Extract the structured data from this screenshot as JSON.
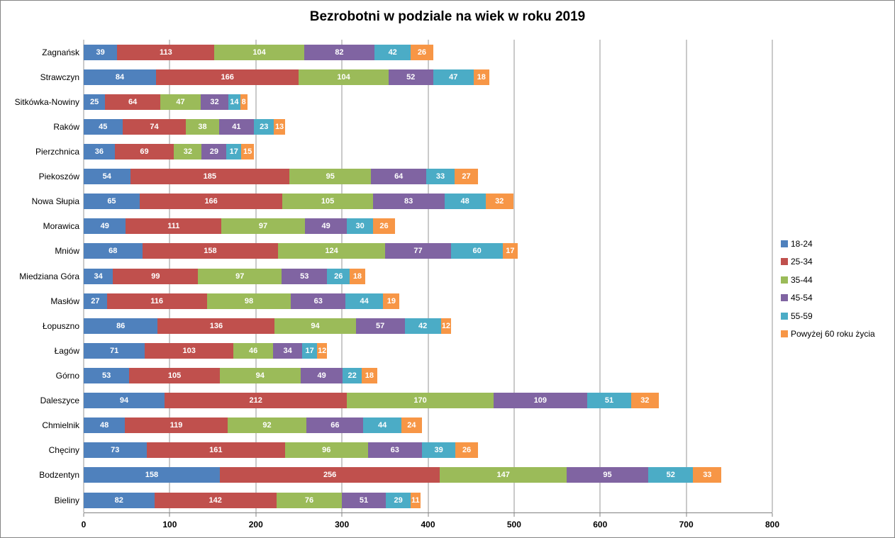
{
  "chart_data": {
    "type": "bar",
    "orientation": "horizontal",
    "stacked": true,
    "title": "Bezrobotni w podziale na wiek w roku 2019",
    "categories": [
      "Zagnańsk",
      "Strawczyn",
      "Sitkówka-Nowiny",
      "Raków",
      "Pierzchnica",
      "Piekoszów",
      "Nowa Słupia",
      "Morawica",
      "Mniów",
      "Miedziana Góra",
      "Masłów",
      "Łopuszno",
      "Łagów",
      "Górno",
      "Daleszyce",
      "Chmielnik",
      "Chęciny",
      "Bodzentyn",
      "Bieliny"
    ],
    "series": [
      {
        "name": "18-24",
        "color": "#4F81BD",
        "values": [
          39,
          84,
          25,
          45,
          36,
          54,
          65,
          49,
          68,
          34,
          27,
          86,
          71,
          53,
          94,
          48,
          73,
          158,
          82
        ]
      },
      {
        "name": "25-34",
        "color": "#C0504D",
        "values": [
          113,
          166,
          64,
          74,
          69,
          185,
          166,
          111,
          158,
          99,
          116,
          136,
          103,
          105,
          212,
          119,
          161,
          256,
          142
        ]
      },
      {
        "name": "35-44",
        "color": "#9BBB59",
        "values": [
          104,
          104,
          47,
          38,
          32,
          95,
          105,
          97,
          124,
          97,
          98,
          94,
          46,
          94,
          170,
          92,
          96,
          147,
          76
        ]
      },
      {
        "name": "45-54",
        "color": "#8064A2",
        "values": [
          82,
          52,
          32,
          41,
          29,
          64,
          83,
          49,
          77,
          53,
          63,
          57,
          34,
          49,
          109,
          66,
          63,
          95,
          51
        ]
      },
      {
        "name": "55-59",
        "color": "#4BACC6",
        "values": [
          42,
          47,
          14,
          23,
          17,
          33,
          48,
          30,
          60,
          26,
          44,
          42,
          17,
          22,
          51,
          44,
          39,
          52,
          29
        ]
      },
      {
        "name": "Powyżej 60 roku życia",
        "color": "#F79646",
        "values": [
          26,
          18,
          8,
          13,
          15,
          27,
          32,
          26,
          17,
          18,
          19,
          12,
          12,
          18,
          32,
          24,
          26,
          33,
          11
        ]
      }
    ],
    "x_axis": {
      "min": 0,
      "max": 800,
      "ticks": [
        0,
        100,
        200,
        300,
        400,
        500,
        600,
        700,
        800
      ]
    },
    "legend_position": "right",
    "grid": true,
    "value_labels": "inside"
  }
}
